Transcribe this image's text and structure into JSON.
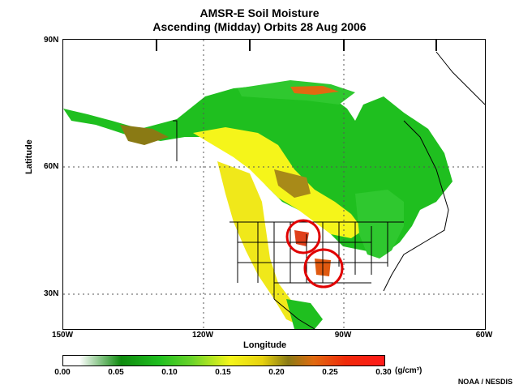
{
  "title": "AMSR-E Soil Moisture",
  "subtitle": "Ascending (Midday) Orbits  28 Aug 2006",
  "axes": {
    "y_label": "Latitude",
    "x_label": "Longitude",
    "lat_ticks": [
      {
        "label": "90N",
        "value": 90
      },
      {
        "label": "60N",
        "value": 60
      },
      {
        "label": "30N",
        "value": 30
      }
    ],
    "lon_ticks": [
      {
        "label": "150W",
        "value": -150
      },
      {
        "label": "120W",
        "value": -120
      },
      {
        "label": "90W",
        "value": -90
      },
      {
        "label": "60W",
        "value": -60
      }
    ]
  },
  "colorbar": {
    "labels": [
      "0.00",
      "0.05",
      "0.10",
      "0.15",
      "0.20",
      "0.25",
      "0.30"
    ],
    "unit": "(g/cm³)"
  },
  "credit": "NOAA / NESDIS",
  "colors": {
    "land_dry": "#ffffff",
    "moist_green": "#1fbf1f",
    "moist_yellow": "#f5f51a",
    "wet_red": "#ff1a1a",
    "highlight_circle": "#e00000"
  }
}
